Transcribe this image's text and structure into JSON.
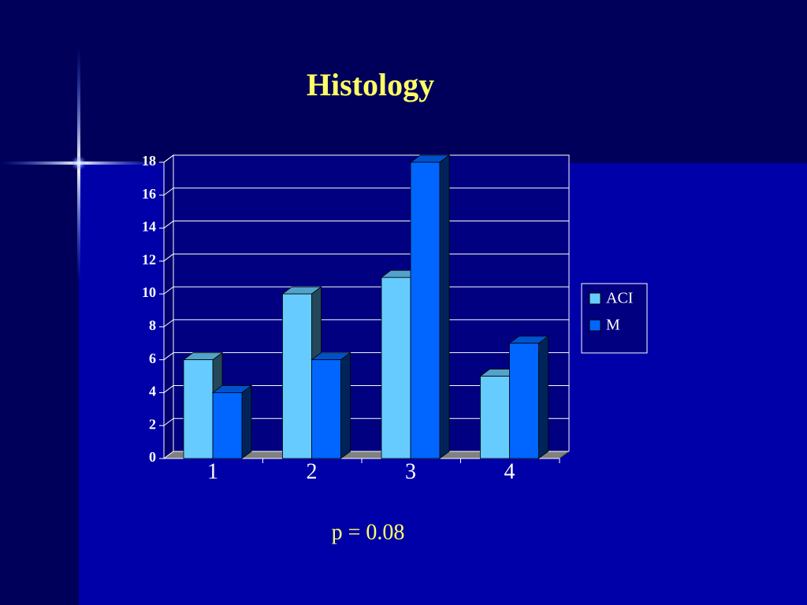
{
  "chart_data": {
    "type": "bar3d",
    "title": "Histology",
    "categories": [
      "1",
      "2",
      "3",
      "4"
    ],
    "series": [
      {
        "name": "ACI",
        "color": "#66ccff",
        "values": [
          6,
          10,
          11,
          5
        ]
      },
      {
        "name": "M",
        "color": "#0066ff",
        "values": [
          4,
          6,
          18,
          7
        ]
      }
    ],
    "ylim": [
      0,
      18
    ],
    "yticks": [
      0,
      2,
      4,
      6,
      8,
      10,
      12,
      14,
      16,
      18
    ],
    "grid": true,
    "legend": "right",
    "annotation": "p = 0.08"
  }
}
